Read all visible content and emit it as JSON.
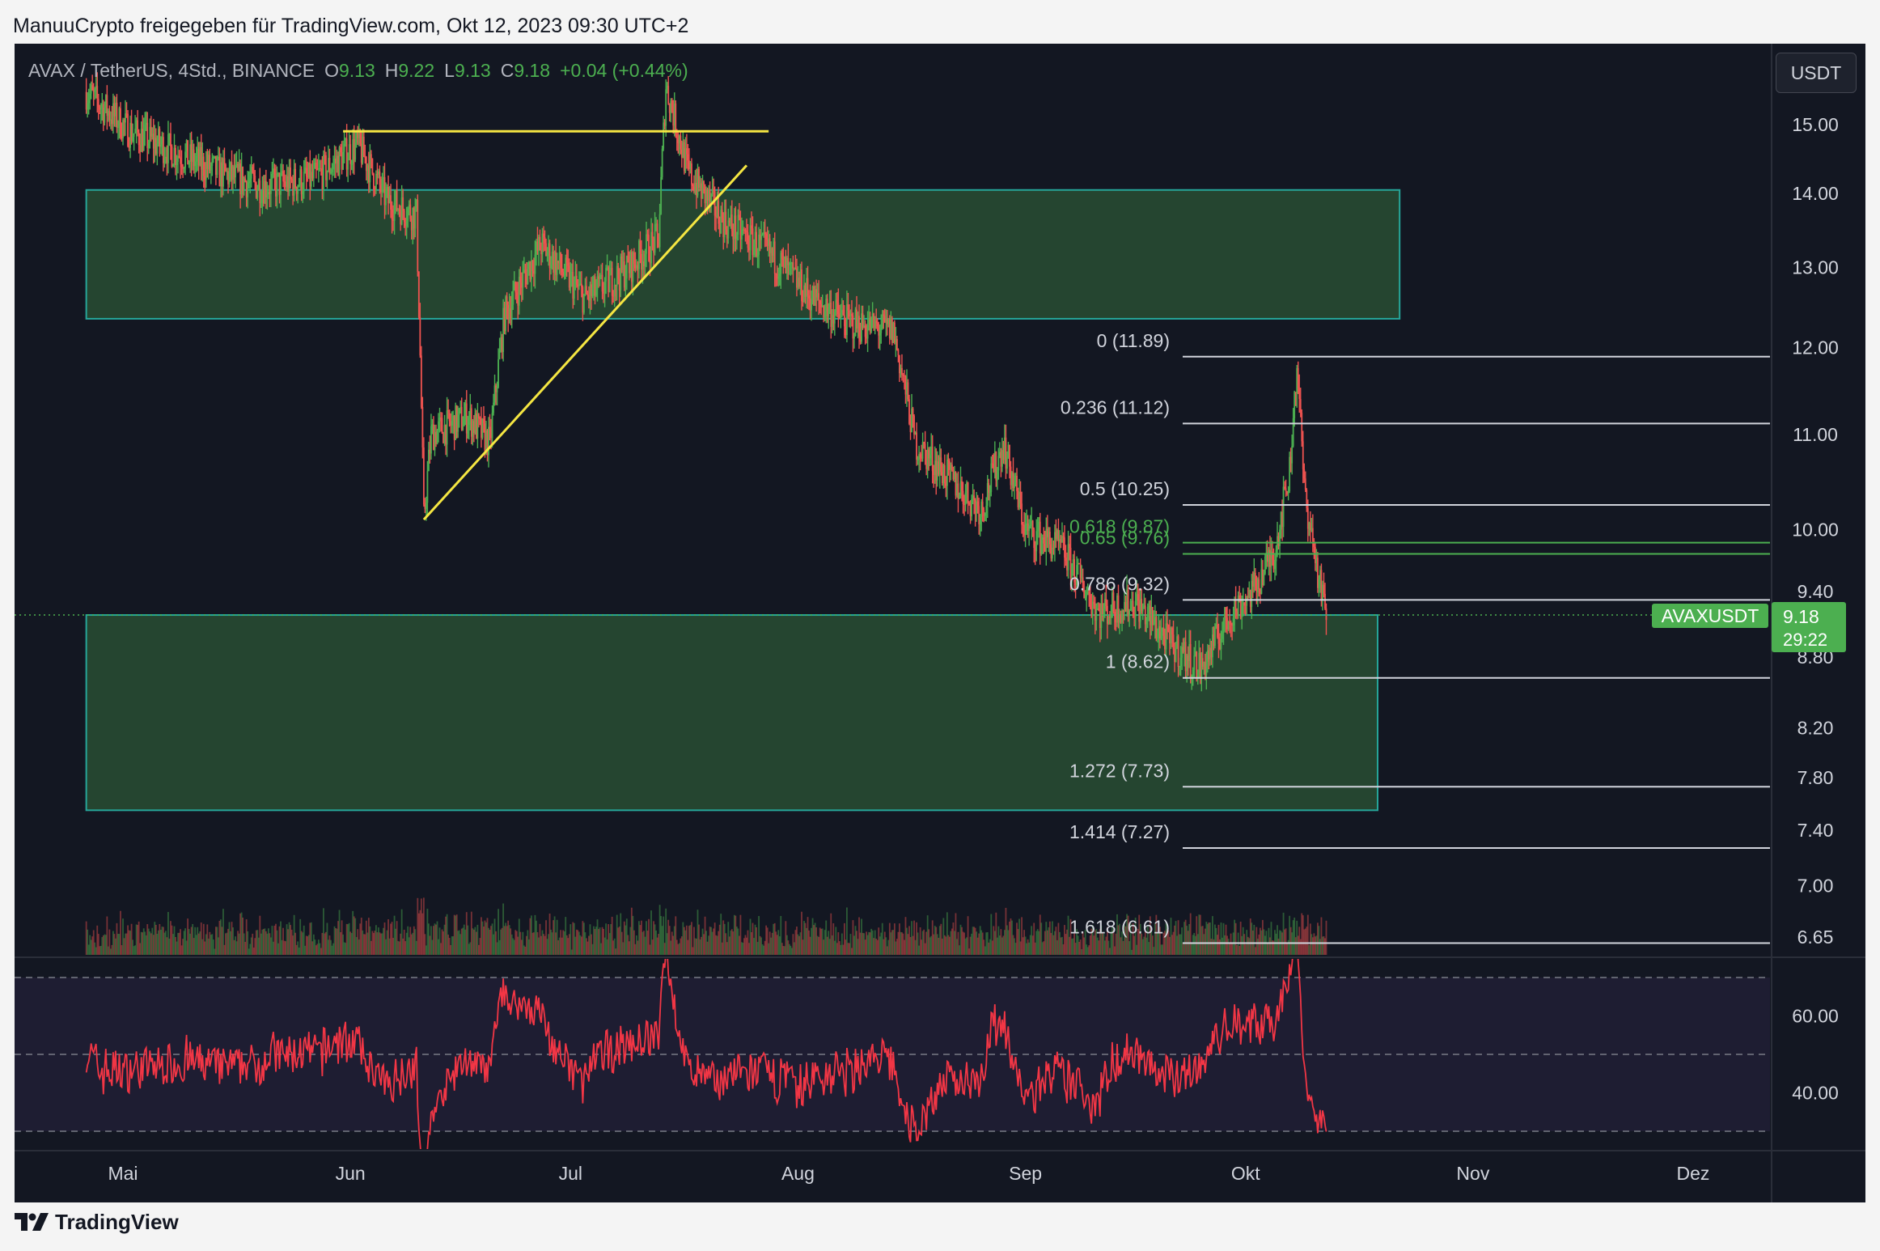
{
  "header": {
    "published": "ManuuCrypto freigegeben für TradingView.com, Okt 12, 2023 09:30 UTC+2"
  },
  "legend": {
    "symbol": "AVAX / TetherUS, 4Std., BINANCE",
    "o_label": "O",
    "o": "9.13",
    "h_label": "H",
    "h": "9.22",
    "l_label": "L",
    "l": "9.13",
    "c_label": "C",
    "c": "9.18",
    "change": "+0.04 (+0.44%)"
  },
  "unit_button": "USDT",
  "price_badge": {
    "symbol": "AVAXUSDT",
    "price": "9.18",
    "countdown": "29:22"
  },
  "footer": {
    "brand": "TradingView"
  },
  "colors": {
    "background": "#131722",
    "up": "#4caf50",
    "down": "#ef5350",
    "zone_fill": "#2e5a36",
    "zone_border": "#26a69a",
    "trendline": "#f5e642",
    "rsi": "#f23645",
    "rsi_band": "#7e57c2"
  },
  "chart_data": {
    "type": "candlestick",
    "y_axis": {
      "labels": [
        "15.00",
        "14.00",
        "13.00",
        "12.00",
        "11.00",
        "10.00",
        "9.40",
        "8.80",
        "8.20",
        "7.80",
        "7.40",
        "7.00",
        "6.65"
      ],
      "ylim": [
        6.45,
        16.5
      ],
      "scale": "log"
    },
    "x_axis": {
      "labels": [
        "Mai",
        "Jun",
        "Jul",
        "Aug",
        "Sep",
        "Okt",
        "Nov",
        "Dez"
      ]
    },
    "price_path": [
      [
        "2023-04-26",
        15.5
      ],
      [
        "2023-05-02",
        14.9
      ],
      [
        "2023-05-08",
        14.6
      ],
      [
        "2023-05-14",
        14.3
      ],
      [
        "2023-05-20",
        14.1
      ],
      [
        "2023-05-27",
        14.2
      ],
      [
        "2023-06-02",
        14.7
      ],
      [
        "2023-06-06",
        13.9
      ],
      [
        "2023-06-10",
        13.7
      ],
      [
        "2023-06-11",
        10.1
      ],
      [
        "2023-06-12",
        11.0
      ],
      [
        "2023-06-17",
        11.2
      ],
      [
        "2023-06-20",
        10.9
      ],
      [
        "2023-06-22",
        12.4
      ],
      [
        "2023-06-27",
        13.3
      ],
      [
        "2023-07-03",
        12.6
      ],
      [
        "2023-07-09",
        13.0
      ],
      [
        "2023-07-13",
        13.4
      ],
      [
        "2023-07-14",
        15.6
      ],
      [
        "2023-07-17",
        14.3
      ],
      [
        "2023-07-22",
        13.6
      ],
      [
        "2023-07-28",
        13.2
      ],
      [
        "2023-08-03",
        12.6
      ],
      [
        "2023-08-08",
        12.3
      ],
      [
        "2023-08-14",
        12.2
      ],
      [
        "2023-08-17",
        10.9
      ],
      [
        "2023-08-22",
        10.5
      ],
      [
        "2023-08-26",
        10.2
      ],
      [
        "2023-08-29",
        10.9
      ],
      [
        "2023-09-01",
        10.0
      ],
      [
        "2023-09-06",
        9.8
      ],
      [
        "2023-09-11",
        9.2
      ],
      [
        "2023-09-16",
        9.3
      ],
      [
        "2023-09-21",
        8.9
      ],
      [
        "2023-09-25",
        8.7
      ],
      [
        "2023-09-29",
        9.2
      ],
      [
        "2023-10-02",
        9.4
      ],
      [
        "2023-10-05",
        9.8
      ],
      [
        "2023-10-07",
        10.6
      ],
      [
        "2023-10-08",
        11.8
      ],
      [
        "2023-10-09",
        10.4
      ],
      [
        "2023-10-11",
        9.5
      ],
      [
        "2023-10-12",
        9.18
      ]
    ],
    "fibonacci": [
      {
        "label": "0 (11.89)",
        "value": 11.89
      },
      {
        "label": "0.236 (11.12)",
        "value": 11.12
      },
      {
        "label": "0.5 (10.25)",
        "value": 10.25
      },
      {
        "label": "0.618 (9.87)",
        "value": 9.87,
        "highlight": true
      },
      {
        "label": "0.65 (9.76)",
        "value": 9.76,
        "highlight": true
      },
      {
        "label": "0.786 (9.32)",
        "value": 9.32
      },
      {
        "label": "1 (8.62)",
        "value": 8.62
      },
      {
        "label": "1.272 (7.73)",
        "value": 7.73
      },
      {
        "label": "1.414 (7.27)",
        "value": 7.27
      },
      {
        "label": "1.618 (6.61)",
        "value": 6.61
      }
    ],
    "zones": [
      {
        "from": "2023-04-26",
        "to": "2023-10-22",
        "low": 12.35,
        "high": 14.05
      },
      {
        "from": "2023-04-26",
        "to": "2023-10-19",
        "low": 7.55,
        "high": 9.18
      }
    ],
    "trendlines": [
      {
        "p1": [
          "2023-05-31",
          14.9
        ],
        "p2": [
          "2023-07-28",
          14.9
        ]
      },
      {
        "p1": [
          "2023-06-11",
          10.1
        ],
        "p2": [
          "2023-07-25",
          14.4
        ]
      }
    ],
    "rsi": {
      "y_axis": {
        "labels": [
          "60.00",
          "40.00"
        ]
      },
      "bands": [
        70,
        50,
        30
      ],
      "ylim": [
        25,
        75
      ]
    }
  }
}
